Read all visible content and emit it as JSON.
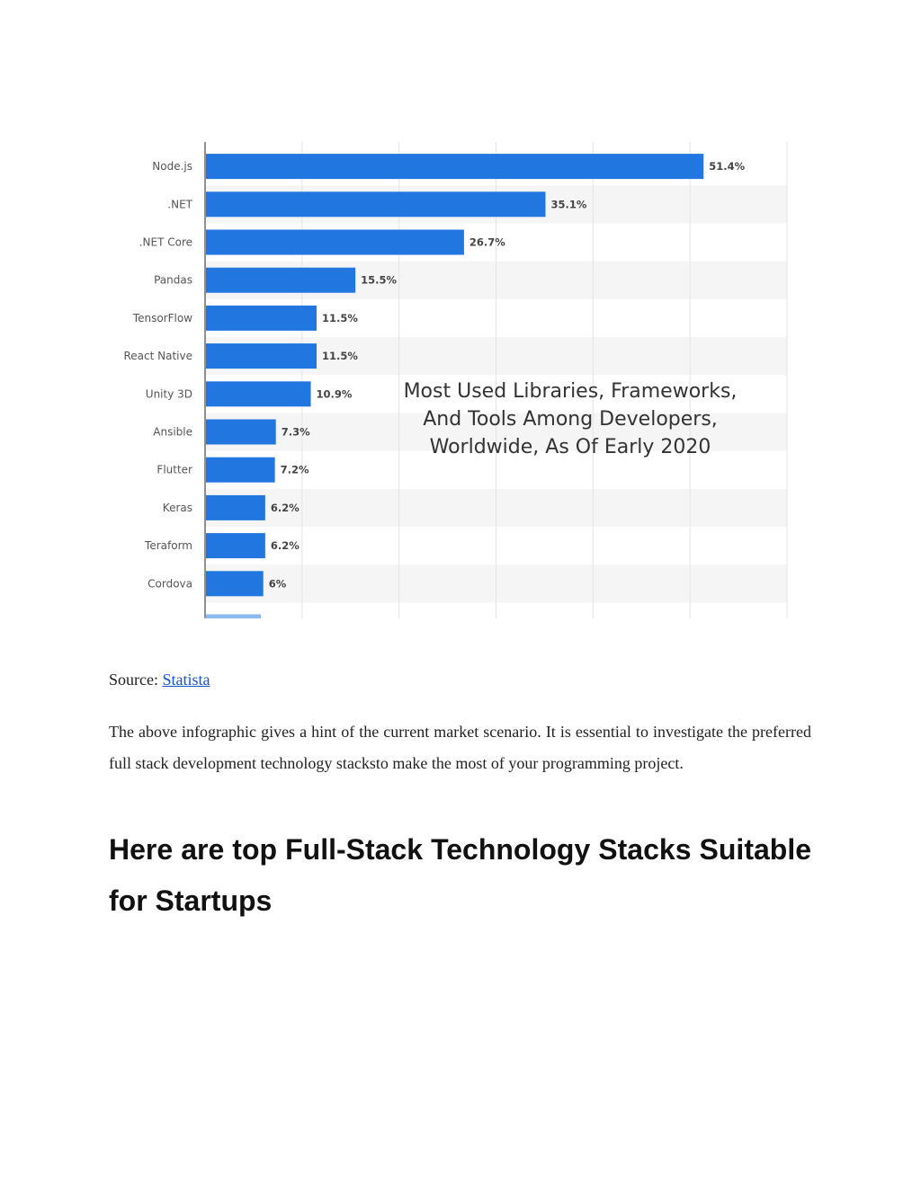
{
  "chart_data": {
    "type": "bar",
    "orientation": "horizontal",
    "title": "Most Used Libraries, Frameworks, And Tools Among Developers, Worldwide, As Of Early 2020",
    "title_lines": [
      "Most Used Libraries, Frameworks,",
      "And Tools Among Developers,",
      "Worldwide, As Of Early 2020"
    ],
    "categories": [
      "Node.js",
      ".NET",
      ".NET Core",
      "Pandas",
      "TensorFlow",
      "React Native",
      "Unity 3D",
      "Ansible",
      "Flutter",
      "Keras",
      "Teraform",
      "Cordova"
    ],
    "values": [
      51.4,
      35.1,
      26.7,
      15.5,
      11.5,
      11.5,
      10.9,
      7.3,
      7.2,
      6.2,
      6.2,
      6
    ],
    "value_labels": [
      "51.4%",
      "35.1%",
      "26.7%",
      "15.5%",
      "11.5%",
      "11.5%",
      "10.9%",
      "7.3%",
      "7.2%",
      "6.2%",
      "6.2%",
      "6%"
    ],
    "xlim": [
      0,
      60
    ],
    "grid": true,
    "bar_color": "#2176e0",
    "partial_bar_color": "#8fbcf0"
  },
  "source": {
    "prefix": "Source: ",
    "link_text": "Statista"
  },
  "paragraph": "The above infographic gives a hint of the current market scenario. It is essential to investigate the preferred full stack development technology stacksto make the most of your programming project.",
  "heading": "Here are top Full-Stack Technology Stacks Suitable for Startups",
  "colors": {
    "link": "#1155cc",
    "row_band": "#f5f5f5"
  }
}
